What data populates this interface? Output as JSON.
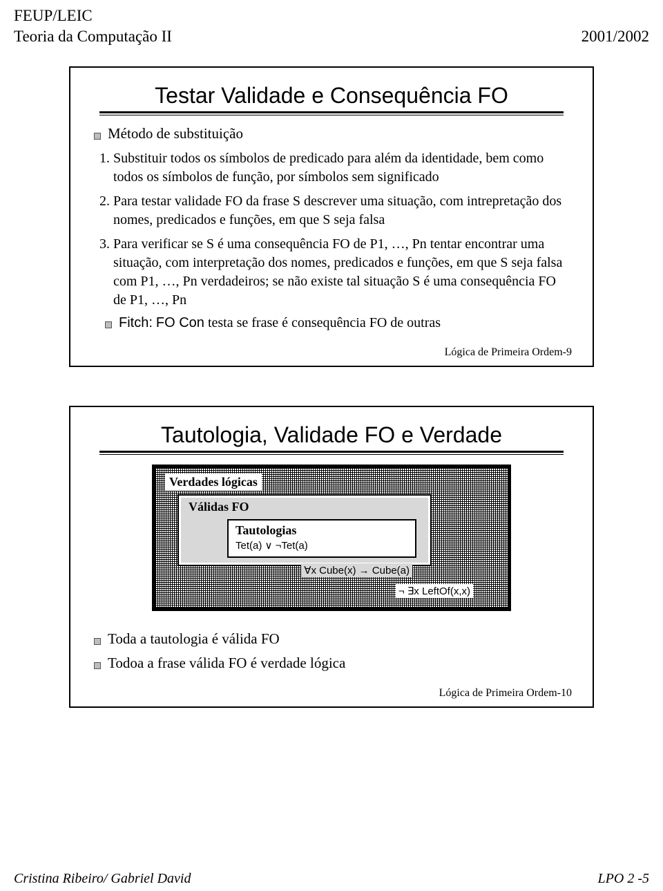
{
  "header": {
    "left1": "FEUP/LEIC",
    "left2": "Teoria da Computação II",
    "right2": "2001/2002"
  },
  "slide1": {
    "title": "Testar Validade e Consequência FO",
    "bullet": "Método de substituição",
    "steps": [
      "Substituir todos os símbolos de predicado para além da identidade, bem como todos os símbolos de função, por símbolos sem significado",
      "Para testar validade FO da frase S descrever uma situação, com intrepretação dos nomes, predicados e funções, em que S seja falsa",
      "Para verificar se S é uma consequência FO de P1, …, Pn tentar encontrar uma situação, com interpretação dos nomes, predicados e funções, em que S seja falsa com P1, …, Pn verdadeiros; se não existe tal situação S é uma consequência FO de P1, …, Pn"
    ],
    "sub_bullet_prefix": "Fitch:",
    "sub_bullet_code": "FO Con",
    "sub_bullet_rest": " testa se frase é consequência FO de outras",
    "footer": "Lógica de Primeira Ordem-9"
  },
  "slide2": {
    "title": "Tautologia, Validade FO e Verdade",
    "outer_label": "Verdades lógicas",
    "mid_label": "Válidas FO",
    "inner_label": "Tautologias",
    "inner_formula": "Tet(a) ∨ ¬Tet(a)",
    "mid_formula": "∀x Cube(x) → Cube(a)",
    "outer_formula": "¬ ∃x LeftOf(x,x)",
    "bullets": [
      "Toda a tautologia é válida FO",
      "Todoa a frase válida FO é verdade lógica"
    ],
    "footer": "Lógica de Primeira Ordem-10"
  },
  "footer": {
    "left": "Cristina Ribeiro/ Gabriel David",
    "right": "LPO 2 -5"
  },
  "colors": {
    "page_bg": "#ffffff",
    "text": "#000000",
    "bullet_fill": "#bdbdbd",
    "mid_fill": "#d8d8d8"
  }
}
